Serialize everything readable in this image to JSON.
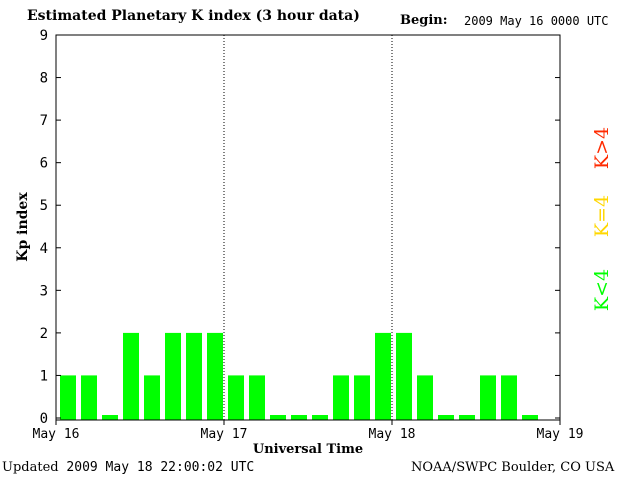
{
  "header": {
    "title": "Estimated Planetary K index (3 hour data)",
    "begin_label": "Begin:",
    "begin_value": "2009 May 16 0000 UTC"
  },
  "footer": {
    "updated_label": "Updated",
    "updated_value": "2009 May 18 22:00:02 UTC",
    "source": "NOAA/SWPC Boulder, CO USA"
  },
  "chart_data": {
    "type": "bar",
    "title": "Estimated Planetary K index (3 hour data)",
    "xlabel": "Universal Time",
    "ylabel": "Kp index",
    "ylim": [
      0,
      9
    ],
    "yticks": [
      "0",
      "1",
      "2",
      "3",
      "4",
      "5",
      "6",
      "7",
      "8",
      "9"
    ],
    "xticks": [
      "May 16",
      "May 17",
      "May 18",
      "May 19"
    ],
    "day_separators": "dotted",
    "grid": false,
    "bar_color": "#00ff00",
    "legend": [
      {
        "label": "K<4",
        "color": "#00ff00"
      },
      {
        "label": "K=4",
        "color": "#ffd700"
      },
      {
        "label": "K>4",
        "color": "#ff2a00"
      }
    ],
    "legend_placement": "right, vertical",
    "values": [
      1,
      1,
      0,
      2,
      1,
      2,
      2,
      2,
      1,
      1,
      0,
      0,
      0,
      1,
      1,
      2,
      2,
      1,
      0,
      0,
      1,
      1,
      0
    ]
  }
}
